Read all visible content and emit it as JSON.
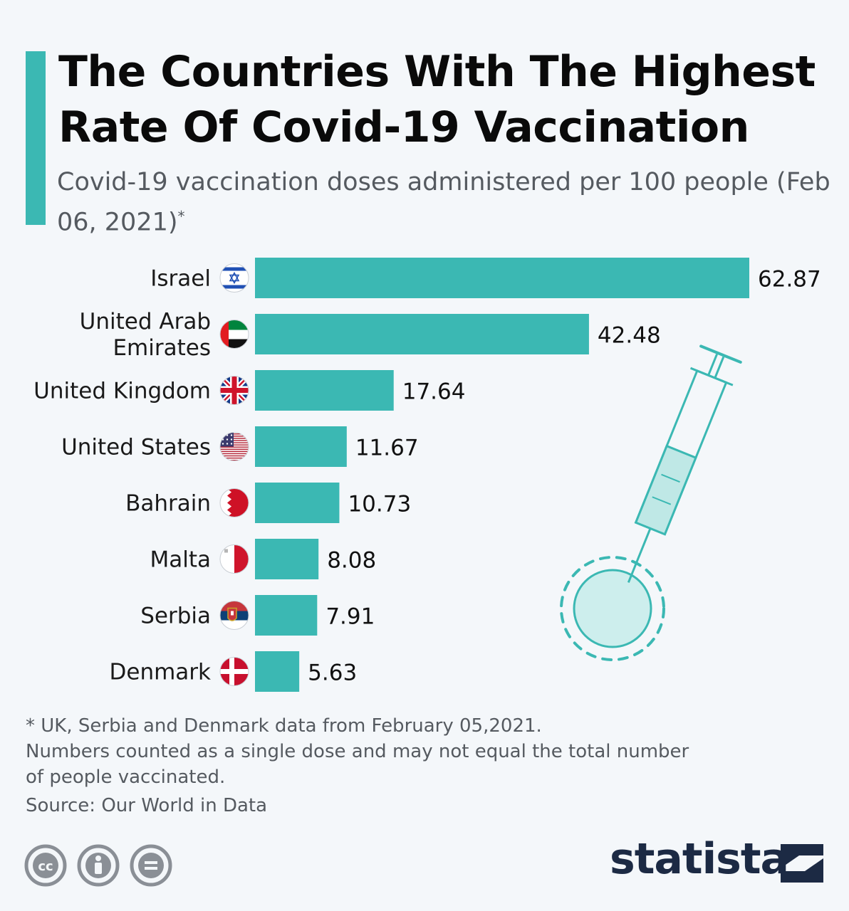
{
  "header": {
    "title": "The Countries With The Highest Rate Of Covid-19 Vaccination",
    "subtitle": "Covid-19 vaccination doses administered per 100 people (Feb 06, 2021)",
    "subtitle_mark": "*"
  },
  "chart_data": {
    "type": "bar",
    "orientation": "horizontal",
    "categories": [
      [
        "Israel"
      ],
      [
        "United Arab",
        "Emirates"
      ],
      [
        "United Kingdom"
      ],
      [
        "United States"
      ],
      [
        "Bahrain"
      ],
      [
        "Malta"
      ],
      [
        "Serbia"
      ],
      [
        "Denmark"
      ]
    ],
    "values": [
      62.87,
      42.48,
      17.64,
      11.67,
      10.73,
      8.08,
      7.91,
      5.63
    ],
    "value_labels": [
      "62.87",
      "42.48",
      "17.64",
      "11.67",
      "10.73",
      "8.08",
      "7.91",
      "5.63"
    ],
    "flags": [
      "israel-flag-icon",
      "uae-flag-icon",
      "uk-flag-icon",
      "us-flag-icon",
      "bahrain-flag-icon",
      "malta-flag-icon",
      "serbia-flag-icon",
      "denmark-flag-icon"
    ],
    "xlim": [
      0,
      62.87
    ],
    "grid": false,
    "legend": "none",
    "bar_color": "#3bb8b3"
  },
  "footer": {
    "footnote_lines": [
      "* UK, Serbia and Denmark data from February 05,2021.",
      "Numbers counted as a single dose and may not equal the total number",
      "of people vaccinated."
    ],
    "source": "Source: Our World in Data",
    "brand": "statista",
    "license_icons": [
      "creative-commons-icon",
      "attribution-icon",
      "no-derivatives-icon"
    ]
  },
  "colors": {
    "accent": "#3bb8b3",
    "title": "#0a0a0a",
    "text": "#555a60",
    "brand": "#1c2a44",
    "background": "#f4f7fa"
  },
  "illustration": "syringe-virus-icon"
}
